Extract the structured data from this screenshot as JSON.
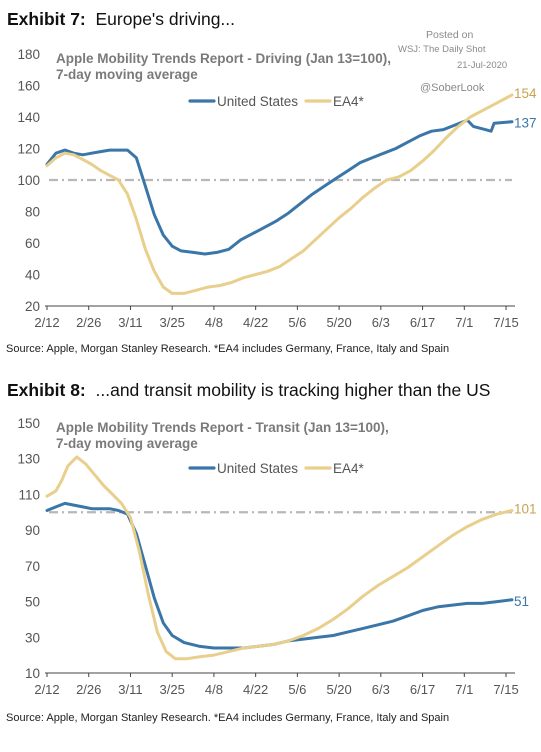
{
  "exhibits": [
    {
      "number": "Exhibit 7:",
      "caption": "Europe's driving...",
      "source": "Source: Apple, Morgan Stanley Research. *EA4 includes Germany, France, Italy and Spain"
    },
    {
      "number": "Exhibit 8:",
      "caption": "...and transit mobility is tracking higher than the US",
      "source": "Source: Apple, Morgan Stanley Research. *EA4 includes Germany, France, Italy and Spain"
    }
  ],
  "watermark": {
    "posted_on": "Posted on",
    "source": "WSJ: The Daily Shot",
    "date": "21-Jul-2020",
    "handle": "@SoberLook"
  },
  "colors": {
    "us": "#3a76a8",
    "ea4": "#e9cf8c",
    "reference": "#b8b8b8",
    "ea4_label": "#c9a350"
  },
  "chart_data": [
    {
      "type": "line",
      "title": "Apple Mobility Trends Report - Driving (Jan 13=100),",
      "subtitle": "7-day moving average",
      "x_tick_labels": [
        "2/12",
        "2/26",
        "3/11",
        "3/25",
        "4/8",
        "4/22",
        "5/6",
        "5/20",
        "6/3",
        "6/17",
        "7/1",
        "7/15"
      ],
      "xlim": [
        "2020-02-12",
        "2020-07-17"
      ],
      "ylim": [
        20,
        180
      ],
      "y_ticks": [
        20,
        40,
        60,
        80,
        100,
        120,
        140,
        160,
        180
      ],
      "reference_line": 100,
      "legend": "top-center",
      "series": [
        {
          "name": "United States",
          "end_label": "137",
          "points": [
            [
              "2020-02-12",
              110
            ],
            [
              "2020-02-15",
              117
            ],
            [
              "2020-02-18",
              119
            ],
            [
              "2020-02-21",
              117
            ],
            [
              "2020-02-24",
              116
            ],
            [
              "2020-02-27",
              117
            ],
            [
              "2020-03-01",
              118
            ],
            [
              "2020-03-04",
              119
            ],
            [
              "2020-03-07",
              119
            ],
            [
              "2020-03-10",
              119
            ],
            [
              "2020-03-13",
              114
            ],
            [
              "2020-03-16",
              96
            ],
            [
              "2020-03-19",
              78
            ],
            [
              "2020-03-22",
              65
            ],
            [
              "2020-03-25",
              58
            ],
            [
              "2020-03-28",
              55
            ],
            [
              "2020-04-01",
              54
            ],
            [
              "2020-04-05",
              53
            ],
            [
              "2020-04-09",
              54
            ],
            [
              "2020-04-13",
              56
            ],
            [
              "2020-04-17",
              62
            ],
            [
              "2020-04-21",
              66
            ],
            [
              "2020-04-25",
              70
            ],
            [
              "2020-04-29",
              74
            ],
            [
              "2020-05-03",
              79
            ],
            [
              "2020-05-07",
              85
            ],
            [
              "2020-05-11",
              91
            ],
            [
              "2020-05-15",
              96
            ],
            [
              "2020-05-19",
              101
            ],
            [
              "2020-05-23",
              106
            ],
            [
              "2020-05-27",
              111
            ],
            [
              "2020-05-31",
              114
            ],
            [
              "2020-06-04",
              117
            ],
            [
              "2020-06-08",
              120
            ],
            [
              "2020-06-12",
              124
            ],
            [
              "2020-06-16",
              128
            ],
            [
              "2020-06-20",
              131
            ],
            [
              "2020-06-24",
              132
            ],
            [
              "2020-06-28",
              135
            ],
            [
              "2020-07-02",
              138
            ],
            [
              "2020-07-04",
              134
            ],
            [
              "2020-07-08",
              132
            ],
            [
              "2020-07-10",
              131
            ],
            [
              "2020-07-11",
              136
            ],
            [
              "2020-07-17",
              137
            ]
          ]
        },
        {
          "name": "EA4*",
          "end_label": "154",
          "points": [
            [
              "2020-02-12",
              109
            ],
            [
              "2020-02-15",
              114
            ],
            [
              "2020-02-18",
              117
            ],
            [
              "2020-02-21",
              116
            ],
            [
              "2020-02-24",
              113
            ],
            [
              "2020-02-27",
              110
            ],
            [
              "2020-03-01",
              106
            ],
            [
              "2020-03-04",
              103
            ],
            [
              "2020-03-07",
              100
            ],
            [
              "2020-03-10",
              91
            ],
            [
              "2020-03-13",
              75
            ],
            [
              "2020-03-16",
              56
            ],
            [
              "2020-03-19",
              42
            ],
            [
              "2020-03-22",
              32
            ],
            [
              "2020-03-25",
              28
            ],
            [
              "2020-03-29",
              28
            ],
            [
              "2020-04-02",
              30
            ],
            [
              "2020-04-06",
              32
            ],
            [
              "2020-04-10",
              33
            ],
            [
              "2020-04-14",
              35
            ],
            [
              "2020-04-18",
              38
            ],
            [
              "2020-04-22",
              40
            ],
            [
              "2020-04-26",
              42
            ],
            [
              "2020-04-30",
              45
            ],
            [
              "2020-05-04",
              50
            ],
            [
              "2020-05-08",
              55
            ],
            [
              "2020-05-12",
              62
            ],
            [
              "2020-05-16",
              69
            ],
            [
              "2020-05-20",
              76
            ],
            [
              "2020-05-24",
              82
            ],
            [
              "2020-05-28",
              89
            ],
            [
              "2020-06-01",
              95
            ],
            [
              "2020-06-05",
              100
            ],
            [
              "2020-06-09",
              102
            ],
            [
              "2020-06-13",
              106
            ],
            [
              "2020-06-17",
              112
            ],
            [
              "2020-06-21",
              119
            ],
            [
              "2020-06-25",
              127
            ],
            [
              "2020-06-29",
              134
            ],
            [
              "2020-07-03",
              140
            ],
            [
              "2020-07-07",
              144
            ],
            [
              "2020-07-11",
              148
            ],
            [
              "2020-07-17",
              154
            ]
          ]
        }
      ]
    },
    {
      "type": "line",
      "title": "Apple Mobility Trends Report - Transit (Jan 13=100),",
      "subtitle": "7-day moving average",
      "x_tick_labels": [
        "2/12",
        "2/26",
        "3/11",
        "3/25",
        "4/8",
        "4/22",
        "5/6",
        "5/20",
        "6/3",
        "6/17",
        "7/1",
        "7/15"
      ],
      "xlim": [
        "2020-02-12",
        "2020-07-17"
      ],
      "ylim": [
        10,
        150
      ],
      "y_ticks": [
        10,
        30,
        50,
        70,
        90,
        110,
        130,
        150
      ],
      "reference_line": 100,
      "legend": "top-center",
      "series": [
        {
          "name": "United States",
          "end_label": "51",
          "points": [
            [
              "2020-02-12",
              101
            ],
            [
              "2020-02-15",
              103
            ],
            [
              "2020-02-18",
              105
            ],
            [
              "2020-02-21",
              104
            ],
            [
              "2020-02-24",
              103
            ],
            [
              "2020-02-27",
              102
            ],
            [
              "2020-03-01",
              102
            ],
            [
              "2020-03-04",
              102
            ],
            [
              "2020-03-07",
              101
            ],
            [
              "2020-03-10",
              99
            ],
            [
              "2020-03-13",
              88
            ],
            [
              "2020-03-16",
              70
            ],
            [
              "2020-03-19",
              52
            ],
            [
              "2020-03-22",
              38
            ],
            [
              "2020-03-25",
              31
            ],
            [
              "2020-03-29",
              27
            ],
            [
              "2020-04-03",
              25
            ],
            [
              "2020-04-08",
              24
            ],
            [
              "2020-04-13",
              24
            ],
            [
              "2020-04-18",
              24
            ],
            [
              "2020-04-23",
              25
            ],
            [
              "2020-04-28",
              26
            ],
            [
              "2020-05-03",
              28
            ],
            [
              "2020-05-08",
              29
            ],
            [
              "2020-05-13",
              30
            ],
            [
              "2020-05-18",
              31
            ],
            [
              "2020-05-23",
              33
            ],
            [
              "2020-05-28",
              35
            ],
            [
              "2020-06-02",
              37
            ],
            [
              "2020-06-07",
              39
            ],
            [
              "2020-06-12",
              42
            ],
            [
              "2020-06-17",
              45
            ],
            [
              "2020-06-22",
              47
            ],
            [
              "2020-06-27",
              48
            ],
            [
              "2020-07-02",
              49
            ],
            [
              "2020-07-07",
              49
            ],
            [
              "2020-07-12",
              50
            ],
            [
              "2020-07-17",
              51
            ]
          ]
        },
        {
          "name": "EA4*",
          "end_label": "101",
          "points": [
            [
              "2020-02-12",
              109
            ],
            [
              "2020-02-15",
              112
            ],
            [
              "2020-02-17",
              118
            ],
            [
              "2020-02-19",
              126
            ],
            [
              "2020-02-22",
              131
            ],
            [
              "2020-02-25",
              127
            ],
            [
              "2020-02-28",
              121
            ],
            [
              "2020-03-02",
              115
            ],
            [
              "2020-03-05",
              110
            ],
            [
              "2020-03-08",
              105
            ],
            [
              "2020-03-11",
              97
            ],
            [
              "2020-03-14",
              78
            ],
            [
              "2020-03-17",
              54
            ],
            [
              "2020-03-20",
              33
            ],
            [
              "2020-03-23",
              22
            ],
            [
              "2020-03-26",
              18
            ],
            [
              "2020-03-30",
              18
            ],
            [
              "2020-04-03",
              19
            ],
            [
              "2020-04-08",
              20
            ],
            [
              "2020-04-13",
              22
            ],
            [
              "2020-04-18",
              24
            ],
            [
              "2020-04-23",
              25
            ],
            [
              "2020-04-28",
              26
            ],
            [
              "2020-05-03",
              28
            ],
            [
              "2020-05-08",
              31
            ],
            [
              "2020-05-13",
              35
            ],
            [
              "2020-05-18",
              40
            ],
            [
              "2020-05-23",
              46
            ],
            [
              "2020-05-28",
              53
            ],
            [
              "2020-06-02",
              59
            ],
            [
              "2020-06-07",
              64
            ],
            [
              "2020-06-12",
              69
            ],
            [
              "2020-06-17",
              75
            ],
            [
              "2020-06-22",
              81
            ],
            [
              "2020-06-27",
              87
            ],
            [
              "2020-07-02",
              92
            ],
            [
              "2020-07-07",
              96
            ],
            [
              "2020-07-12",
              99
            ],
            [
              "2020-07-17",
              101
            ]
          ]
        }
      ]
    }
  ]
}
